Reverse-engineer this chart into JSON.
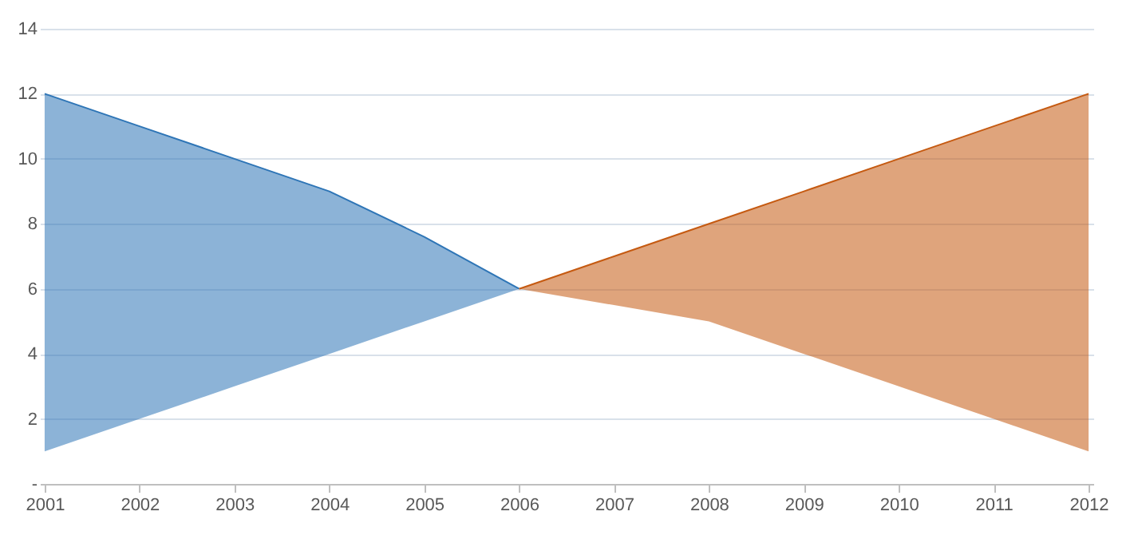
{
  "chart_data": {
    "type": "line",
    "categories": [
      "2001",
      "2002",
      "2003",
      "2004",
      "2005",
      "2006",
      "2007",
      "2008",
      "2009",
      "2010",
      "2011",
      "2012"
    ],
    "series": [
      {
        "color": "#2e75b6",
        "values": [
          12,
          11,
          10,
          9,
          7.6,
          6,
          null,
          null,
          null,
          null,
          null,
          null
        ],
        "upper": [
          12,
          11,
          10,
          9,
          7.6,
          6,
          null,
          null,
          null,
          null,
          null,
          null
        ],
        "lower": [
          1,
          2,
          3,
          4,
          5,
          6,
          null,
          null,
          null,
          null,
          null,
          null
        ]
      },
      {
        "color": "#c55a11",
        "values": [
          null,
          null,
          null,
          null,
          null,
          6,
          7,
          8,
          9,
          10,
          11,
          12
        ],
        "upper": [
          null,
          null,
          null,
          null,
          null,
          6,
          7,
          8,
          9,
          10,
          11,
          12
        ],
        "lower": [
          null,
          null,
          null,
          null,
          null,
          6,
          5.5,
          5,
          4,
          3,
          2,
          1
        ]
      }
    ],
    "ylim": [
      0,
      14
    ],
    "yticks": [
      {
        "value": 0,
        "label": "-"
      },
      2,
      4,
      6,
      8,
      10,
      12,
      14
    ],
    "grid": "y"
  }
}
